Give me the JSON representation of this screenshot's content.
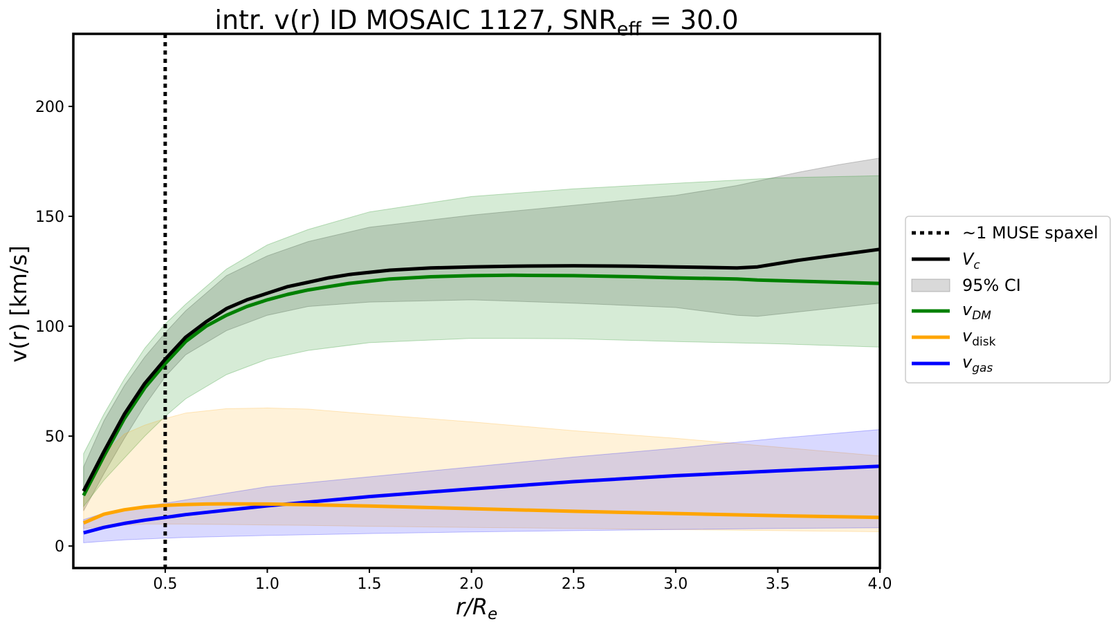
{
  "chart_data": {
    "type": "line",
    "title": "intr. v(r) ID MOSAIC 1127, SNR",
    "title_subscript": "eff",
    "title_suffix": " = 30.0",
    "xlabel": "r/R",
    "xlabel_subscript": "e",
    "ylabel": "v(r) [km/s]",
    "xlim": [
      0.05,
      4.0
    ],
    "ylim": [
      -10,
      233
    ],
    "xticks": [
      0.5,
      1.0,
      1.5,
      2.0,
      2.5,
      3.0,
      3.5,
      4.0
    ],
    "xtick_labels": [
      "0.5",
      "1.0",
      "1.5",
      "2.0",
      "2.5",
      "3.0",
      "3.5",
      "4.0"
    ],
    "yticks": [
      0,
      50,
      100,
      150,
      200
    ],
    "ytick_labels": [
      "0",
      "50",
      "100",
      "150",
      "200"
    ],
    "vline": {
      "x": 0.5,
      "label": "~1 MUSE spaxel"
    },
    "series": [
      {
        "name": "Vc",
        "label_main": "V",
        "label_sub": "c",
        "color": "#000000",
        "x": [
          0.1,
          0.2,
          0.3,
          0.4,
          0.5,
          0.6,
          0.7,
          0.8,
          0.9,
          1.0,
          1.1,
          1.2,
          1.3,
          1.4,
          1.5,
          1.6,
          1.8,
          2.0,
          2.2,
          2.5,
          2.8,
          3.0,
          3.3,
          3.4,
          3.6,
          3.8,
          4.0
        ],
        "values": [
          25,
          43,
          60,
          74,
          85,
          95,
          102,
          108,
          112,
          115,
          118,
          120,
          122,
          123.5,
          124.5,
          125.5,
          126.5,
          127,
          127.3,
          127.5,
          127.3,
          127,
          126.5,
          127,
          130,
          132.5,
          135
        ]
      },
      {
        "name": "vDM",
        "label_main": "v",
        "label_sub": "DM",
        "color": "#008000",
        "x": [
          0.1,
          0.2,
          0.3,
          0.4,
          0.5,
          0.6,
          0.7,
          0.8,
          0.9,
          1.0,
          1.1,
          1.2,
          1.3,
          1.4,
          1.5,
          1.6,
          1.8,
          2.0,
          2.2,
          2.5,
          2.8,
          3.0,
          3.3,
          3.4,
          3.6,
          3.8,
          4.0
        ],
        "values": [
          23,
          41,
          58,
          72,
          83,
          93,
          100,
          105,
          109,
          112,
          114.5,
          116.5,
          118,
          119.5,
          120.5,
          121.5,
          122.5,
          123,
          123.2,
          123,
          122.5,
          122,
          121.5,
          121,
          120.5,
          120,
          119.5
        ]
      },
      {
        "name": "vdisk",
        "label_main": "v",
        "label_sub": "disk",
        "color": "#ffa500",
        "x": [
          0.1,
          0.2,
          0.3,
          0.4,
          0.5,
          0.6,
          0.7,
          0.8,
          1.0,
          1.2,
          1.5,
          2.0,
          2.5,
          3.0,
          3.5,
          4.0
        ],
        "values": [
          10.5,
          14.5,
          16.5,
          17.8,
          18.5,
          18.9,
          19.1,
          19.2,
          19.1,
          18.8,
          18.2,
          17,
          15.8,
          14.8,
          13.8,
          13
        ]
      },
      {
        "name": "vgas",
        "label_main": "v",
        "label_sub": "gas",
        "color": "#0000ff",
        "x": [
          0.1,
          0.2,
          0.3,
          0.4,
          0.5,
          0.6,
          0.8,
          1.0,
          1.5,
          2.0,
          2.5,
          3.0,
          3.5,
          4.0
        ],
        "values": [
          6,
          8.5,
          10.3,
          11.8,
          13,
          14.3,
          16.3,
          18.3,
          22.5,
          26,
          29.3,
          32,
          34.2,
          36.3
        ]
      }
    ],
    "bands": [
      {
        "name": "95% CI Vc",
        "color": "#808080",
        "opacity": 0.3,
        "x": [
          0.1,
          0.2,
          0.3,
          0.4,
          0.5,
          0.6,
          0.8,
          1.0,
          1.2,
          1.5,
          2.0,
          2.5,
          3.0,
          3.3,
          3.4,
          3.6,
          3.8,
          4.0
        ],
        "lower": [
          16,
          33,
          49,
          64,
          77,
          87,
          98,
          105,
          109,
          111,
          112,
          110.5,
          108.5,
          105,
          104.5,
          106.5,
          108.5,
          110.5
        ],
        "upper": [
          36,
          57,
          73,
          86,
          97,
          107,
          123,
          132,
          138.5,
          145,
          150.5,
          155,
          159.5,
          164,
          166,
          170,
          173.5,
          176.5
        ]
      },
      {
        "name": "95% CI vDM",
        "color": "#008000",
        "opacity": 0.16,
        "x": [
          0.1,
          0.2,
          0.3,
          0.4,
          0.5,
          0.6,
          0.8,
          1.0,
          1.2,
          1.5,
          2.0,
          2.5,
          3.0,
          3.5,
          4.0
        ],
        "lower": [
          18,
          30,
          40,
          50,
          59,
          67,
          78,
          85,
          89,
          92.5,
          94.5,
          94.3,
          93,
          92,
          90.5
        ],
        "upper": [
          42,
          60,
          76,
          90,
          101,
          110,
          126,
          137,
          144,
          152,
          159,
          162.5,
          165,
          167.5,
          168.5
        ]
      },
      {
        "name": "95% CI vdisk",
        "color": "#ffa500",
        "opacity": 0.15,
        "x": [
          0.1,
          0.2,
          0.3,
          0.4,
          0.5,
          0.6,
          0.8,
          1.0,
          1.2,
          1.5,
          2.0,
          2.5,
          3.0,
          3.5,
          4.0
        ],
        "lower": [
          8,
          9,
          9.5,
          10,
          10,
          10,
          9.8,
          9.6,
          9.4,
          9.0,
          8.5,
          8.0,
          7.5,
          7.0,
          6.5
        ],
        "upper": [
          22,
          42,
          51,
          55,
          58,
          60.5,
          62.5,
          62.8,
          62.3,
          60,
          56.5,
          52.5,
          49,
          45,
          41
        ]
      },
      {
        "name": "95% CI vgas",
        "color": "#0000ff",
        "opacity": 0.15,
        "x": [
          0.1,
          0.2,
          0.3,
          0.4,
          0.5,
          0.6,
          0.8,
          1.0,
          1.5,
          2.0,
          2.5,
          3.0,
          3.5,
          4.0
        ],
        "lower": [
          1.5,
          2.2,
          2.8,
          3.2,
          3.6,
          3.9,
          4.4,
          4.8,
          5.7,
          6.4,
          7.0,
          7.5,
          8.0,
          8.3
        ],
        "upper": [
          12,
          15,
          16.5,
          18,
          19.5,
          21,
          24,
          27,
          31.5,
          36,
          40.5,
          44.5,
          49,
          53
        ]
      }
    ],
    "legend": {
      "position": "outside right",
      "ci_label": "95% CI"
    }
  }
}
